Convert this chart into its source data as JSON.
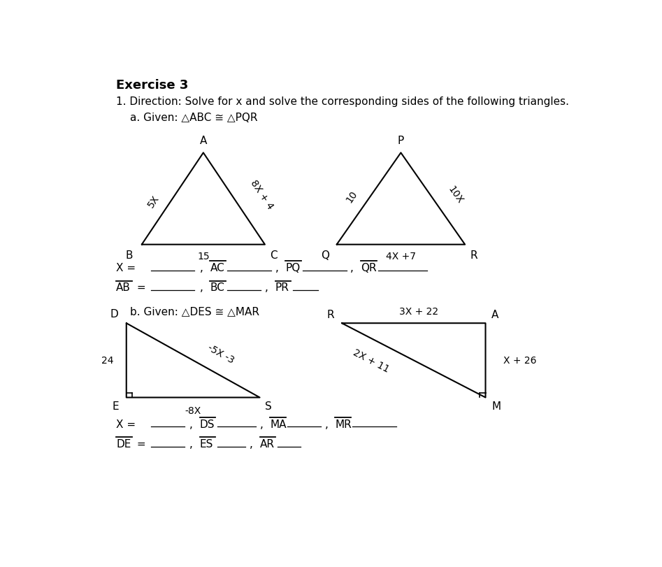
{
  "bg_color": "#ffffff",
  "text_color": "#000000",
  "line_color": "#000000",
  "exercise_title": "Exercise 3",
  "problem1_text": "1. Direction: Solve for x and solve the corresponding sides of the following triangles.",
  "given_a": "a. Given: △ABC ≅ △PQR",
  "given_b": "b. Given: △DES ≅ △MAR",
  "tri_abc": {
    "B": [
      0.115,
      0.595
    ],
    "C": [
      0.355,
      0.595
    ],
    "A": [
      0.235,
      0.805
    ],
    "label_A": "A",
    "label_B": "B",
    "label_C": "C",
    "side_AB_label": "5X",
    "side_AC_label": "8X + 4",
    "side_BC_label": "15"
  },
  "tri_pqr": {
    "Q": [
      0.495,
      0.595
    ],
    "R": [
      0.745,
      0.595
    ],
    "P": [
      0.62,
      0.805
    ],
    "label_P": "P",
    "label_Q": "Q",
    "label_R": "R",
    "side_PQ_label": "10",
    "side_PR_label": "10X",
    "side_QR_label": "4X +7"
  },
  "tri_des": {
    "D": [
      0.085,
      0.415
    ],
    "E": [
      0.085,
      0.245
    ],
    "S": [
      0.345,
      0.245
    ],
    "label_D": "D",
    "label_E": "E",
    "label_S": "S",
    "side_DE_label": "24",
    "side_ES_label": "-8X",
    "side_DS_label": "-5X -3"
  },
  "tri_mar": {
    "R": [
      0.505,
      0.415
    ],
    "A": [
      0.785,
      0.415
    ],
    "M": [
      0.785,
      0.245
    ],
    "label_R": "R",
    "label_A": "A",
    "label_M": "M",
    "side_RA_label": "3X + 22",
    "side_AM_label": "X + 26",
    "side_RM_label": "2X + 11"
  }
}
